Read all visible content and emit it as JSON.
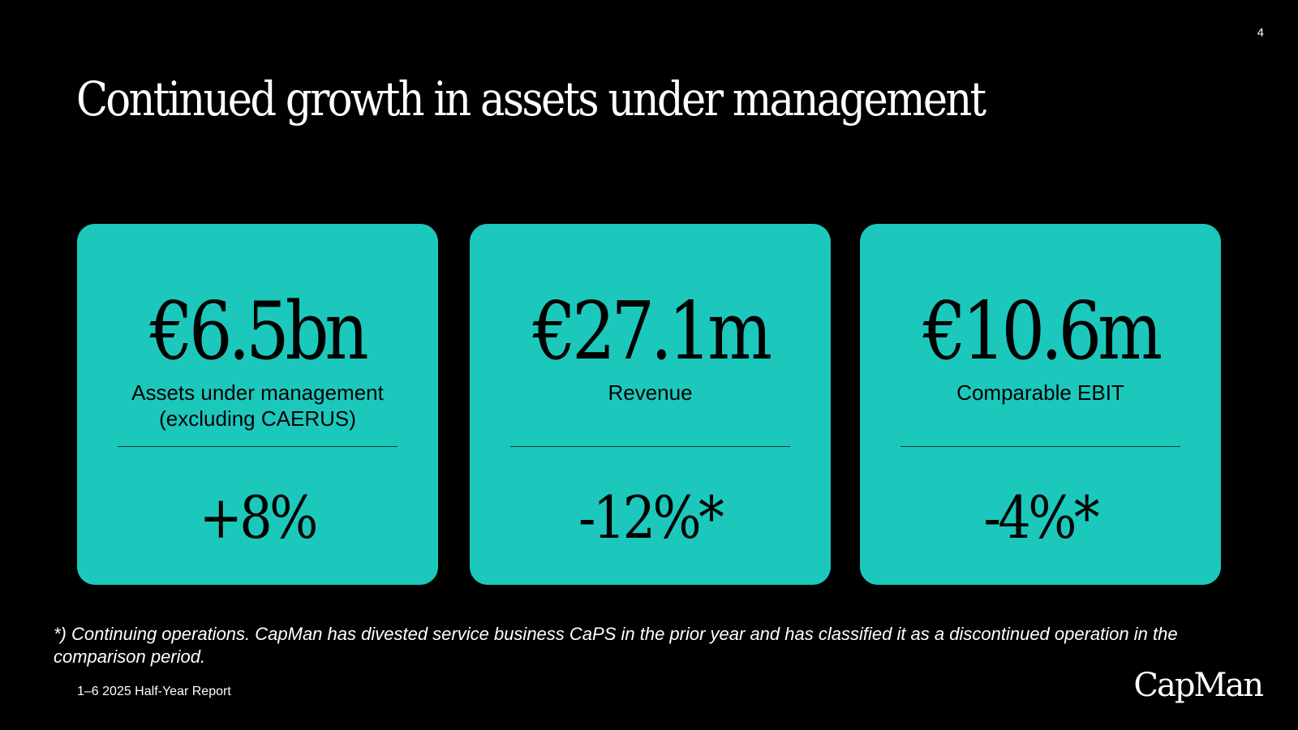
{
  "page": {
    "number": "4",
    "title": "Continued growth in assets under management",
    "footnote": "*) Continuing operations. CapMan has divested service business CaPS in the prior year and has classified it as a discontinued operation in the comparison period.",
    "footer_text": "1–6 2025 Half-Year Report",
    "logo_text": "CapMan"
  },
  "colors": {
    "background": "#000000",
    "card": "#1cc8bb",
    "text_light": "#ffffff",
    "text_dark": "#000000"
  },
  "cards": [
    {
      "value": "€6.5bn",
      "label": "Assets under management\n(excluding CAERUS)",
      "change": "+8%"
    },
    {
      "value": "€27.1m",
      "label": "Revenue",
      "change": "-12%*"
    },
    {
      "value": "€10.6m",
      "label": "Comparable EBIT",
      "change": "-4%*"
    }
  ]
}
